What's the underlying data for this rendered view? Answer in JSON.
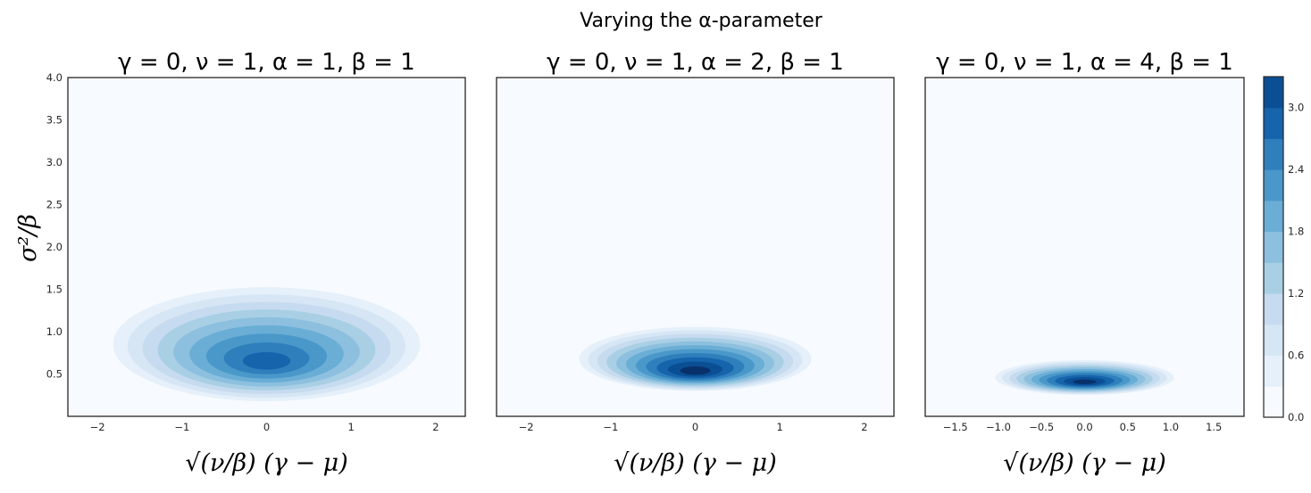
{
  "suptitle": "Varying the α-parameter",
  "colormap": [
    "#f7fbff",
    "#e6f0fa",
    "#d6e6f4",
    "#c6dbef",
    "#a9cfe5",
    "#8dc0df",
    "#6aaed6",
    "#4a98c9",
    "#2f7fbd",
    "#1664ab",
    "#0a4f94",
    "#08306b"
  ],
  "chart_data": [
    {
      "type": "heatmap",
      "title": "γ = 0, ν = 1, α = 1, β = 1",
      "params": {
        "gamma": 0,
        "nu": 1,
        "alpha": 1,
        "beta": 1
      },
      "xlabel": "√(ν/β) (γ − μ)",
      "ylabel": "σ²/β",
      "xlim": [
        -2.35,
        2.35
      ],
      "ylim": [
        0,
        4.0
      ],
      "xticks": [
        -2,
        -1,
        0,
        1,
        2
      ],
      "xtick_labels": [
        "−2",
        "−1",
        "0",
        "1",
        "2"
      ],
      "yticks": [
        0.5,
        1.0,
        1.5,
        2.0,
        2.5,
        3.0,
        3.5,
        4.0
      ],
      "ytick_labels": [
        "0.5",
        "1.0",
        "1.5",
        "2.0",
        "2.5",
        "3.0",
        "3.5",
        "4.0"
      ],
      "peak": {
        "x": 0,
        "y": 0.62
      }
    },
    {
      "type": "heatmap",
      "title": "γ = 0, ν = 1, α = 2, β = 1",
      "params": {
        "gamma": 0,
        "nu": 1,
        "alpha": 2,
        "beta": 1
      },
      "xlabel": "√(ν/β) (γ − μ)",
      "ylabel": "",
      "xlim": [
        -2.35,
        2.35
      ],
      "ylim": [
        0,
        4.0
      ],
      "xticks": [
        -2,
        -1,
        0,
        1,
        2
      ],
      "xtick_labels": [
        "−2",
        "−1",
        "0",
        "1",
        "2"
      ],
      "yticks": [],
      "ytick_labels": [],
      "peak": {
        "x": 0,
        "y": 0.52
      }
    },
    {
      "type": "heatmap",
      "title": "γ = 0, ν = 1, α = 4, β = 1",
      "params": {
        "gamma": 0,
        "nu": 1,
        "alpha": 4,
        "beta": 1
      },
      "xlabel": "√(ν/β) (γ − μ)",
      "ylabel": "",
      "xlim": [
        -1.85,
        1.85
      ],
      "ylim": [
        0,
        4.0
      ],
      "xticks": [
        -1.5,
        -1.0,
        -0.5,
        0.0,
        0.5,
        1.0,
        1.5
      ],
      "xtick_labels": [
        "−1.5",
        "−1.0",
        "−0.5",
        "0.0",
        "0.5",
        "1.0",
        "1.5"
      ],
      "yticks": [],
      "ytick_labels": [],
      "peak": {
        "x": 0,
        "y": 0.4
      }
    }
  ],
  "colorbar": {
    "ticks": [
      0.0,
      0.6,
      1.2,
      1.8,
      2.4,
      3.0
    ],
    "tick_labels": [
      "0.0",
      "0.6",
      "1.2",
      "1.8",
      "2.4",
      "3.0"
    ],
    "max": 3.3
  }
}
